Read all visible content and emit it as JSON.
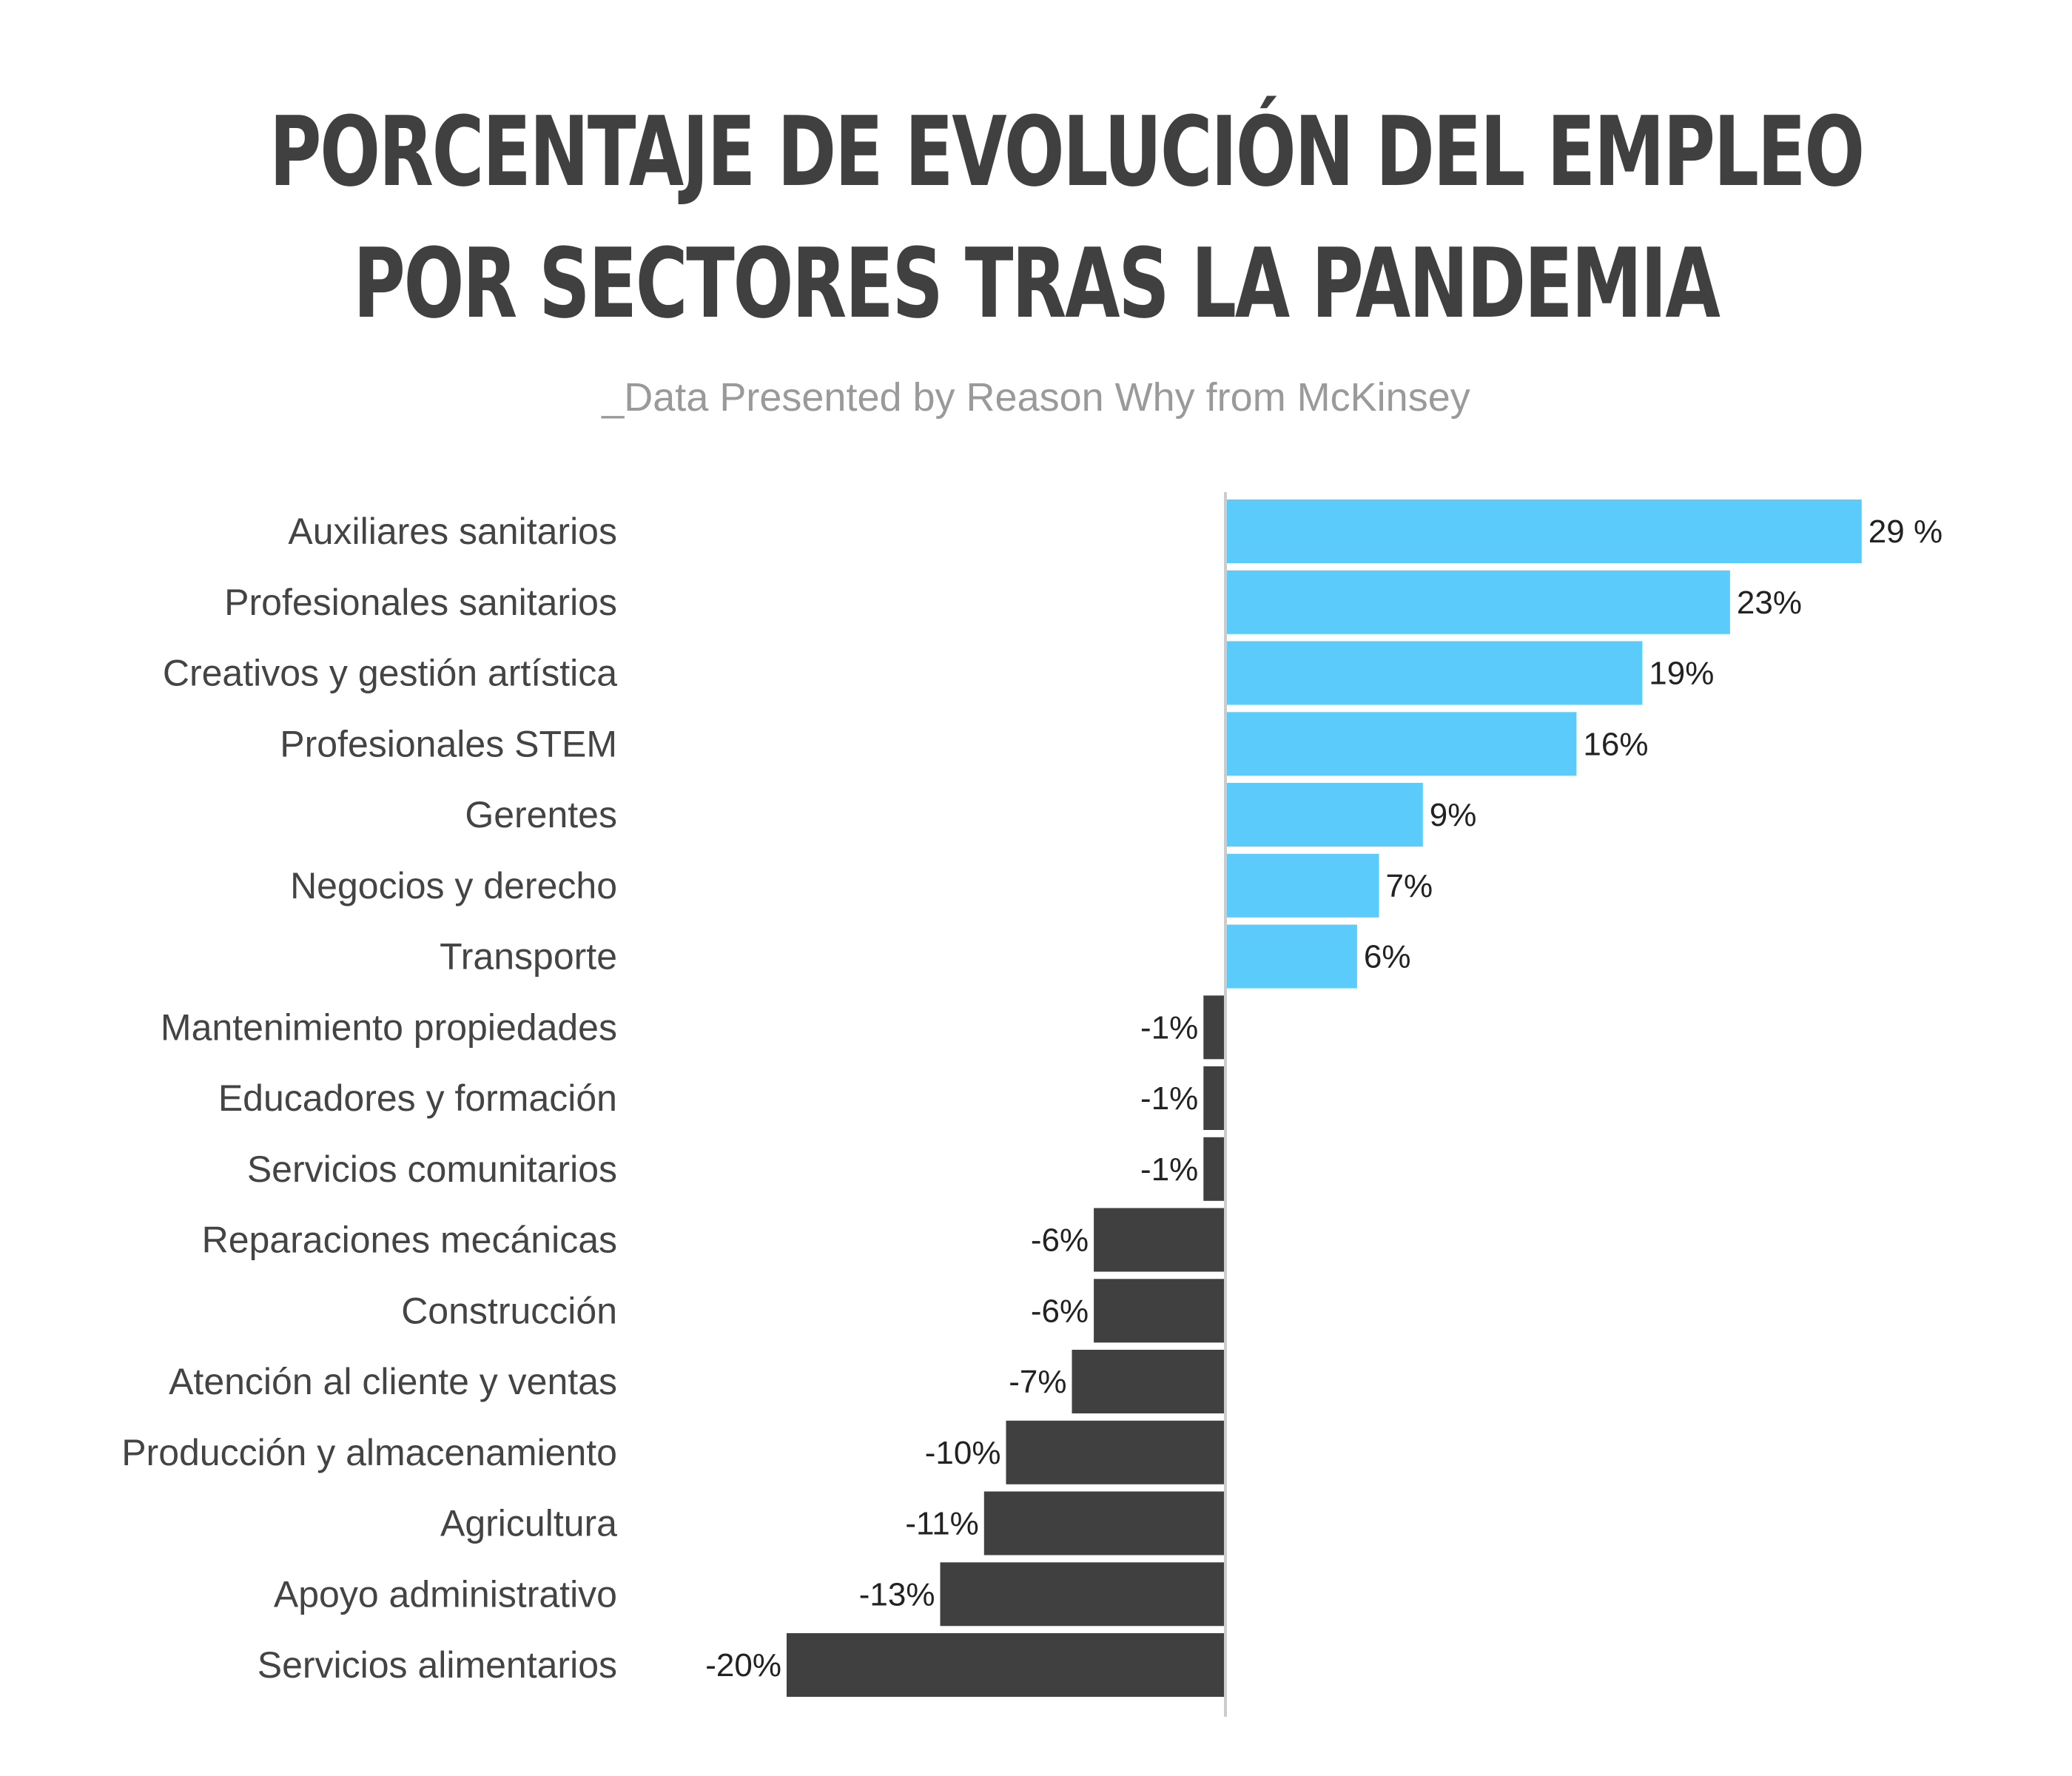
{
  "header": {
    "title_line1": "PORCENTAJE DE EVOLUCIÓN DEL EMPLEO",
    "title_line2": "POR SECTORES TRAS LA PANDEMIA",
    "subtitle": "_Data Presented by Reason Why from McKinsey"
  },
  "colors": {
    "positive": "#5BCBFB",
    "negative": "#404040",
    "axis": "#cccccc"
  },
  "chart_data": {
    "type": "bar",
    "orientation": "horizontal",
    "title": "PORCENTAJE DE EVOLUCIÓN DEL EMPLEO POR SECTORES TRAS LA PANDEMIA",
    "subtitle": "_Data Presented by Reason Why from McKinsey",
    "categories": [
      "Auxiliares sanitarios",
      "Profesionales sanitarios",
      "Creativos y gestión artística",
      "Profesionales STEM",
      "Gerentes",
      "Negocios y derecho",
      "Transporte",
      "Mantenimiento propiedades",
      "Educadores y formación",
      "Servicios comunitarios",
      "Reparaciones mecánicas",
      "Construcción",
      "Atención al cliente y ventas",
      "Producción y almacenamiento",
      "Agricultura",
      "Apoyo administrativo",
      "Servicios alimentarios"
    ],
    "values": [
      29,
      23,
      19,
      16,
      9,
      7,
      6,
      -1,
      -1,
      -1,
      -6,
      -6,
      -7,
      -10,
      -11,
      -13,
      -20
    ],
    "value_labels": [
      "29 %",
      "23%",
      "19%",
      "16%",
      "9%",
      "7%",
      "6%",
      "-1%",
      "-1%",
      "-1%",
      "-6%",
      "-6%",
      "-7%",
      "-10%",
      "-11%",
      "-13%",
      "-20%"
    ],
    "xlabel": "",
    "ylabel": "",
    "xlim": [
      -20,
      29
    ],
    "grid": false,
    "legend": "none"
  }
}
